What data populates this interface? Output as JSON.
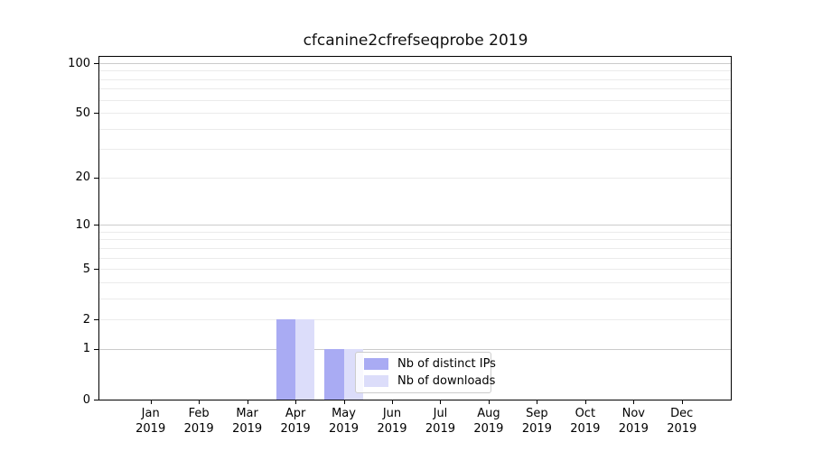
{
  "title": "cfcanine2cfrefseqprobe 2019",
  "chart_data": {
    "type": "bar",
    "title": "cfcanine2cfrefseqprobe 2019",
    "categories": [
      "Jan 2019",
      "Feb 2019",
      "Mar 2019",
      "Apr 2019",
      "May 2019",
      "Jun 2019",
      "Jul 2019",
      "Aug 2019",
      "Sep 2019",
      "Oct 2019",
      "Nov 2019",
      "Dec 2019"
    ],
    "series": [
      {
        "name": "Nb of distinct IPs",
        "color": "#a9abf3",
        "values": [
          0,
          0,
          0,
          2,
          1,
          0,
          0,
          0,
          0,
          0,
          0,
          0
        ]
      },
      {
        "name": "Nb of downloads",
        "color": "#dcddfa",
        "values": [
          0,
          0,
          0,
          2,
          1,
          0,
          0,
          0,
          0,
          0,
          0,
          0
        ]
      }
    ],
    "xlabel": "",
    "ylabel": "",
    "yscale": "log1p",
    "ylim": [
      0,
      110
    ],
    "yticks": [
      100,
      50,
      20,
      10,
      5,
      2,
      1,
      0
    ],
    "grid_major": [
      1,
      10,
      100
    ],
    "grid_minor": [
      2,
      3,
      4,
      5,
      6,
      7,
      8,
      9,
      20,
      30,
      40,
      50,
      60,
      70,
      80,
      90
    ],
    "grid": "horizontal",
    "legend_position": "inside-bottom-center"
  }
}
